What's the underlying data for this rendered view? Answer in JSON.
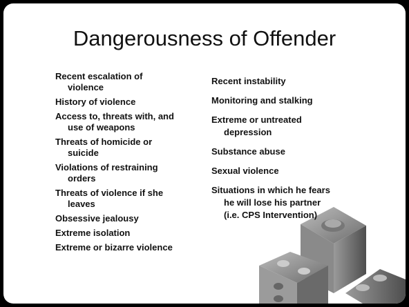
{
  "slide": {
    "title": "Dangerousness of Offender",
    "left_items": [
      [
        "Recent escalation of",
        "violence"
      ],
      [
        "History of violence"
      ],
      [
        "Access to, threats with, and",
        "use of weapons"
      ],
      [
        "Threats of homicide or",
        "suicide"
      ],
      [
        "Violations of restraining",
        "orders"
      ],
      [
        "Threats of violence if she",
        "leaves"
      ],
      [
        "Obsessive jealousy"
      ],
      [
        "Extreme isolation"
      ],
      [
        "Extreme or bizarre violence"
      ]
    ],
    "right_items": [
      [
        "Recent instability"
      ],
      [
        "Monitoring and stalking"
      ],
      [
        "Extreme or untreated",
        "depression"
      ],
      [
        "Substance abuse"
      ],
      [
        "Sexual violence"
      ],
      [
        "Situations in which he fears",
        "he will lose his partner",
        "(i.e. CPS Intervention)"
      ]
    ]
  }
}
